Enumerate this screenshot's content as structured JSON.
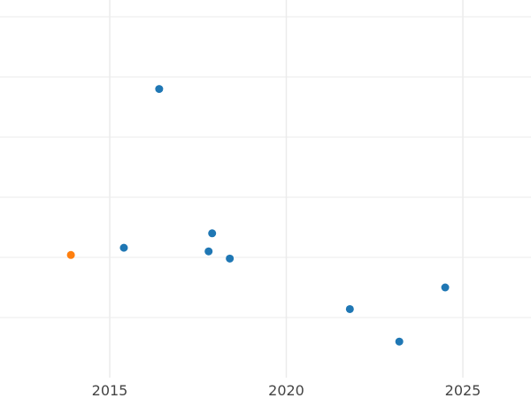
{
  "chart_data": {
    "type": "scatter",
    "title": "",
    "xlabel": "",
    "ylabel": "",
    "grid": true,
    "legend": "none",
    "xlim": [
      2015.0,
      2026.9
    ],
    "ylim": [
      0,
      1
    ],
    "x_ticks": [
      2015,
      2020,
      2025
    ],
    "x_tick_labels": [
      "2015",
      "2020",
      "2025"
    ],
    "y_gridlines": 6,
    "series": [
      {
        "color": "#1f77b4",
        "points": [
          {
            "x": 2016.4,
            "y": 0.8
          },
          {
            "x": 2015.4,
            "y": 0.36
          },
          {
            "x": 2017.9,
            "y": 0.4
          },
          {
            "x": 2017.8,
            "y": 0.35
          },
          {
            "x": 2018.4,
            "y": 0.33
          },
          {
            "x": 2021.8,
            "y": 0.19
          },
          {
            "x": 2023.2,
            "y": 0.1
          },
          {
            "x": 2024.5,
            "y": 0.25
          }
        ]
      },
      {
        "color": "#ff7f0e",
        "points": [
          {
            "x": 2013.9,
            "y": 0.34
          }
        ]
      }
    ]
  }
}
